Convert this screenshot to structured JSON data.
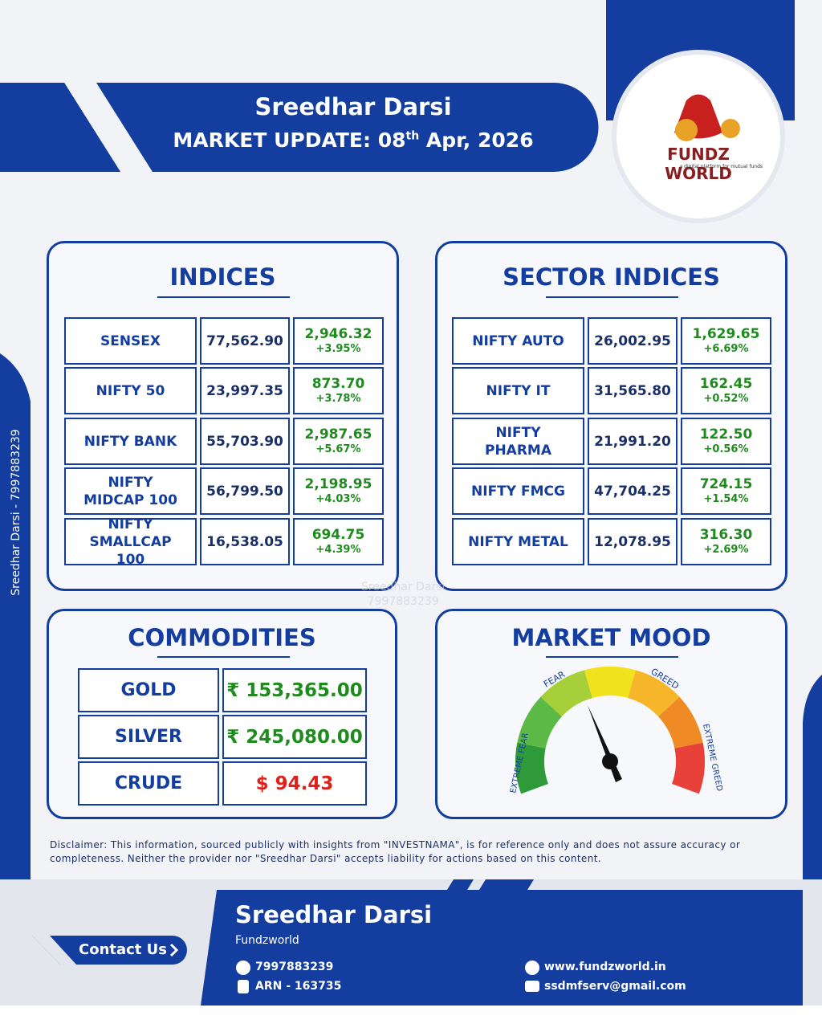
{
  "header": {
    "name": "Sreedhar Darsi",
    "label": "MARKET UPDATE:",
    "day": "08",
    "suffix": "th",
    "date_rest": "Apr, 2026"
  },
  "logo": {
    "title": "FUNDZ WORLD",
    "tagline": "a digital platform for mutual funds"
  },
  "side_text": "Sreedhar Darsi - 7997883239",
  "watermark": {
    "name": "Sreedhar Darsi",
    "phone": "7997883239"
  },
  "indices": {
    "title": "INDICES",
    "rows": [
      {
        "name": "SENSEX",
        "value": "77,562.90",
        "change": "2,946.32",
        "pct": "+3.95%"
      },
      {
        "name": "NIFTY 50",
        "value": "23,997.35",
        "change": "873.70",
        "pct": "+3.78%"
      },
      {
        "name": "NIFTY BANK",
        "value": "55,703.90",
        "change": "2,987.65",
        "pct": "+5.67%"
      },
      {
        "name": "NIFTY MIDCAP 100",
        "value": "56,799.50",
        "change": "2,198.95",
        "pct": "+4.03%"
      },
      {
        "name": "NIFTY SMALLCAP 100",
        "value": "16,538.05",
        "change": "694.75",
        "pct": "+4.39%"
      }
    ]
  },
  "sector_indices": {
    "title": "SECTOR INDICES",
    "rows": [
      {
        "name": "NIFTY AUTO",
        "value": "26,002.95",
        "change": "1,629.65",
        "pct": "+6.69%"
      },
      {
        "name": "NIFTY IT",
        "value": "31,565.80",
        "change": "162.45",
        "pct": "+0.52%"
      },
      {
        "name": "NIFTY PHARMA",
        "value": "21,991.20",
        "change": "122.50",
        "pct": "+0.56%"
      },
      {
        "name": "NIFTY FMCG",
        "value": "47,704.25",
        "change": "724.15",
        "pct": "+1.54%"
      },
      {
        "name": "NIFTY METAL",
        "value": "12,078.95",
        "change": "316.30",
        "pct": "+2.69%"
      }
    ]
  },
  "commodities": {
    "title": "COMMODITIES",
    "rows": [
      {
        "name": "GOLD",
        "value": "₹ 153,365.00",
        "color": "#1f8b1f"
      },
      {
        "name": "SILVER",
        "value": "₹ 245,080.00",
        "color": "#1f8b1f"
      },
      {
        "name": "CRUDE",
        "value": "$ 94.43",
        "color": "#e0201b"
      }
    ]
  },
  "market_mood": {
    "title": "MARKET MOOD",
    "labels": {
      "extreme_fear": "EXTREME FEAR",
      "fear": "FEAR",
      "greed": "GREED",
      "extreme_greed": "EXTREME GREED"
    }
  },
  "disclaimer": "Disclaimer: This information, sourced publicly with insights from \"INVESTNAMA\", is for reference only and does not assure accuracy or completeness. Neither the provider nor \"Sreedhar Darsi\" accepts liability for actions based on this content.",
  "footer": {
    "contact": "Contact Us",
    "name": "Sreedhar Darsi",
    "company": "Fundzworld",
    "phone": "7997883239",
    "arn": "ARN - 163735",
    "website": "www.fundzworld.in",
    "email": "ssdmfserv@gmail.com"
  }
}
